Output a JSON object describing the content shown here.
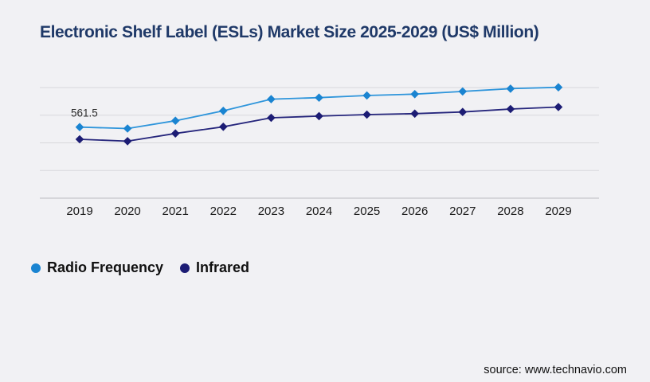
{
  "title": "Electronic Shelf Label (ESLs) Market Size 2025-2029 (US$ Million)",
  "source_credit": "source: www.technavio.com",
  "colors": {
    "background": "#f1f1f4",
    "title": "#1f3968",
    "gridline": "#d8d8db",
    "axis_line": "#c6c6ca",
    "tick_text": "#1a1a1a",
    "radio_frequency_line": "#2e95db",
    "radio_frequency_marker": "#1a84d1",
    "infrared_line": "#26267c",
    "infrared_marker": "#1c1c74"
  },
  "legend": {
    "items": [
      {
        "label": "Radio Frequency",
        "color": "#1a84d1"
      },
      {
        "label": "Infrared",
        "color": "#1c1c74"
      }
    ]
  },
  "chart_data": {
    "type": "line",
    "title": "Electronic Shelf Label (ESLs) Market Size 2025-2029 (US$ Million)",
    "xlabel": "",
    "ylabel": "",
    "x": [
      2019,
      2020,
      2021,
      2022,
      2023,
      2024,
      2025,
      2026,
      2027,
      2028,
      2029
    ],
    "series": [
      {
        "name": "Radio Frequency",
        "marker": "diamond",
        "line_color": "#2e95db",
        "marker_color": "#1a84d1",
        "values": [
          561.5,
          550,
          612,
          690,
          782,
          794,
          811,
          822,
          843,
          865,
          876
        ]
      },
      {
        "name": "Infrared",
        "marker": "diamond",
        "line_color": "#26267c",
        "marker_color": "#1c1c74",
        "values": [
          465,
          450,
          511,
          564,
          635,
          648,
          660,
          668,
          681,
          704,
          720
        ]
      }
    ],
    "annotation": {
      "text": "561.5",
      "series": "Radio Frequency",
      "year": 2019
    },
    "ylim": [
      0,
      874
    ],
    "gridline_count": 5,
    "grid": "horizontal-only",
    "y_axis_labels_visible": false,
    "legend_position": "bottom-left"
  }
}
